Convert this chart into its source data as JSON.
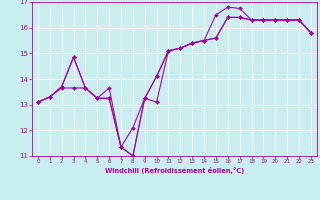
{
  "xlabel": "Windchill (Refroidissement éolien,°C)",
  "background_color": "#c8eef0",
  "line_color": "#aa00aa",
  "grid_color": "#ffffff",
  "xlim": [
    -0.5,
    23.5
  ],
  "ylim": [
    11,
    17
  ],
  "xticks": [
    0,
    1,
    2,
    3,
    4,
    5,
    6,
    7,
    8,
    9,
    10,
    11,
    12,
    13,
    14,
    15,
    16,
    17,
    18,
    19,
    20,
    21,
    22,
    23
  ],
  "yticks": [
    11,
    12,
    13,
    14,
    15,
    16,
    17
  ],
  "line1_x": [
    0,
    1,
    2,
    3,
    4,
    5,
    6,
    7,
    8,
    9,
    10,
    11,
    12,
    13,
    14,
    15,
    16,
    17,
    18,
    19,
    20,
    21,
    22,
    23
  ],
  "line1_y": [
    13.1,
    13.3,
    13.7,
    14.85,
    13.65,
    13.25,
    13.25,
    11.35,
    11.0,
    13.25,
    13.1,
    15.1,
    15.2,
    15.4,
    15.5,
    15.6,
    16.4,
    16.4,
    16.3,
    16.3,
    16.3,
    16.3,
    16.3,
    15.8
  ],
  "line2_x": [
    0,
    1,
    2,
    3,
    4,
    5,
    6,
    7,
    8,
    9,
    10,
    11,
    12,
    13,
    14,
    15,
    16,
    17,
    18,
    19,
    20,
    21,
    22,
    23
  ],
  "line2_y": [
    13.1,
    13.3,
    13.7,
    14.85,
    13.65,
    13.25,
    13.25,
    11.35,
    12.1,
    13.25,
    14.1,
    15.1,
    15.2,
    15.4,
    15.5,
    16.5,
    16.8,
    16.75,
    16.3,
    16.3,
    16.3,
    16.3,
    16.3,
    15.8
  ],
  "line3_x": [
    0,
    1,
    2,
    3,
    4,
    5,
    6,
    7,
    8,
    9,
    10,
    11,
    12,
    13,
    14,
    15,
    16,
    17,
    18,
    19,
    20,
    21,
    22,
    23
  ],
  "line3_y": [
    13.1,
    13.3,
    13.65,
    13.65,
    13.65,
    13.25,
    13.65,
    11.35,
    11.0,
    13.25,
    14.1,
    15.1,
    15.2,
    15.4,
    15.5,
    15.6,
    16.4,
    16.4,
    16.3,
    16.3,
    16.3,
    16.3,
    16.3,
    15.8
  ]
}
